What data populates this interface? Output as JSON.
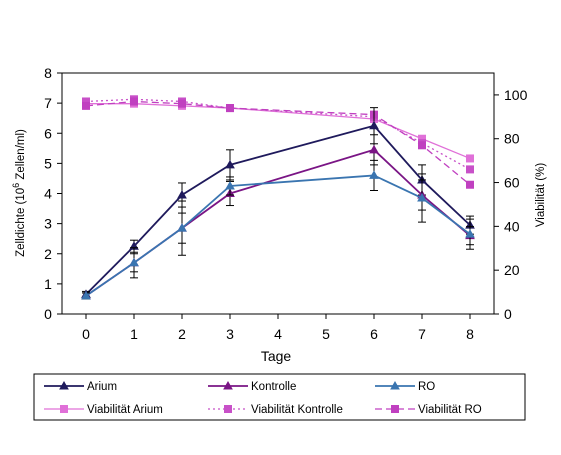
{
  "chart_data": {
    "type": "line",
    "x": [
      0,
      1,
      2,
      3,
      6,
      7,
      8
    ],
    "xlabel": "Tage",
    "ylabel_left": "Zelldichte (10^6 Zellen/ml)",
    "ylabel_left_parts": [
      "Zelldichte (10",
      "6",
      " Zellen/ml)"
    ],
    "ylabel_right": "Viabilität (%)",
    "xlim": [
      -0.5,
      8.5
    ],
    "ylim_left": [
      0,
      8
    ],
    "ylim_right": [
      0,
      110
    ],
    "xticks": [
      0,
      1,
      2,
      3,
      4,
      5,
      6,
      7,
      8
    ],
    "yticks_left": [
      0,
      1,
      2,
      3,
      4,
      5,
      6,
      7,
      8
    ],
    "yticks_right": [
      0,
      20,
      40,
      60,
      80,
      100
    ],
    "grid": false,
    "legend_position": "bottom",
    "series": [
      {
        "name": "Arium",
        "axis": "left",
        "color": "#1f1a5c",
        "marker": "triangle",
        "dash": "solid",
        "values": [
          0.65,
          2.25,
          3.95,
          4.95,
          6.25,
          4.45,
          2.95
        ],
        "errors": [
          0.1,
          0.2,
          0.4,
          0.5,
          0.6,
          0.5,
          0.3
        ]
      },
      {
        "name": "Kontrolle",
        "axis": "left",
        "color": "#7a1585",
        "marker": "triangle",
        "dash": "solid",
        "values": [
          0.6,
          1.7,
          2.85,
          4.0,
          5.45,
          3.95,
          2.6
        ],
        "errors": [
          0.1,
          0.3,
          0.5,
          0.4,
          0.5,
          0.5,
          0.3
        ]
      },
      {
        "name": "RO",
        "axis": "left",
        "color": "#3a75b0",
        "marker": "triangle",
        "dash": "solid",
        "values": [
          0.6,
          1.7,
          2.85,
          4.25,
          4.6,
          3.85,
          2.65
        ],
        "errors": [
          0.1,
          0.5,
          0.9,
          0.3,
          0.5,
          0.8,
          0.5
        ]
      },
      {
        "name": "Viabilität Arium",
        "axis": "right",
        "color": "#e070d8",
        "marker": "square",
        "dash": "solid",
        "values": [
          96,
          96,
          95,
          94,
          89,
          80,
          71
        ]
      },
      {
        "name": "Viabilität Kontrolle",
        "axis": "right",
        "color": "#c850c8",
        "marker": "square",
        "dash": "dotted",
        "values": [
          97,
          98,
          97,
          94,
          90,
          78,
          66
        ]
      },
      {
        "name": "Viabilität RO",
        "axis": "right",
        "color": "#c040c0",
        "marker": "square",
        "dash": "dashed",
        "values": [
          95,
          97,
          96,
          94,
          91,
          77,
          59
        ]
      }
    ]
  }
}
